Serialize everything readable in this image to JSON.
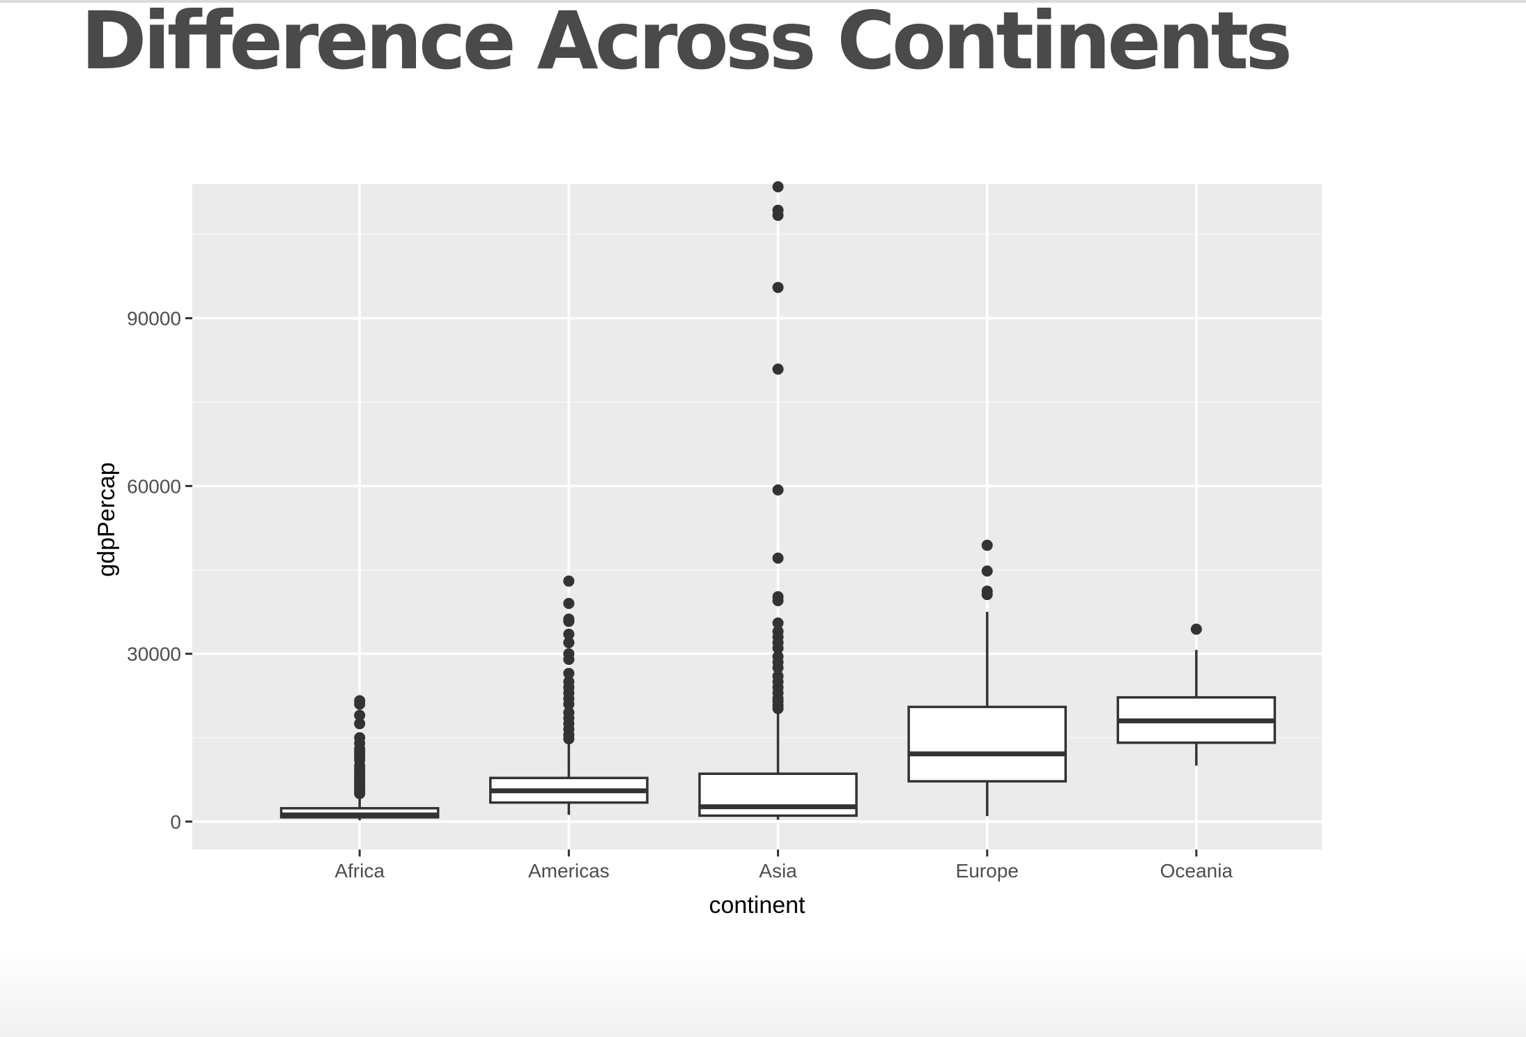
{
  "slide": {
    "title": "Difference Across Continents"
  },
  "chart_data": {
    "type": "boxplot",
    "title": "",
    "xlabel": "continent",
    "ylabel": "gdpPercap",
    "categories": [
      "Africa",
      "Americas",
      "Asia",
      "Europe",
      "Oceania"
    ],
    "ylim": [
      -5000,
      114000
    ],
    "yticks": [
      0,
      30000,
      60000,
      90000
    ],
    "y_tick_labels": [
      "0",
      "30000",
      "60000",
      "90000"
    ],
    "grid": true,
    "legend": "none",
    "boxes": [
      {
        "category": "Africa",
        "whisker_low": 241,
        "q1": 760,
        "median": 1190,
        "q3": 2380,
        "whisker_high": 4800,
        "outliers": [
          5000,
          5400,
          5800,
          6200,
          6600,
          7000,
          7400,
          7800,
          8200,
          8600,
          9000,
          9500,
          10000,
          11000,
          11500,
          12000,
          12500,
          13000,
          14000,
          15000,
          17500,
          19000,
          21000,
          21600
        ]
      },
      {
        "category": "Americas",
        "whisker_low": 1200,
        "q1": 3400,
        "median": 5500,
        "q3": 7800,
        "whisker_high": 14300,
        "outliers": [
          14800,
          15500,
          16500,
          17500,
          18500,
          19500,
          21000,
          22000,
          23000,
          24000,
          25000,
          26500,
          29000,
          30000,
          32000,
          33500,
          35800,
          36200,
          39000,
          43000
        ]
      },
      {
        "category": "Asia",
        "whisker_low": 330,
        "q1": 1060,
        "median": 2650,
        "q3": 8550,
        "whisker_high": 19800,
        "outliers": [
          20200,
          20800,
          21500,
          22000,
          23000,
          24000,
          25000,
          26000,
          27500,
          28500,
          29500,
          31000,
          32000,
          33000,
          34000,
          35500,
          39500,
          40200,
          47100,
          59300,
          80900,
          95500,
          108400,
          109300,
          113500
        ]
      },
      {
        "category": "Europe",
        "whisker_low": 970,
        "q1": 7200,
        "median": 12100,
        "q3": 20500,
        "whisker_high": 37500,
        "outliers": [
          40600,
          41200,
          44800,
          49400
        ]
      },
      {
        "category": "Oceania",
        "whisker_low": 10000,
        "q1": 14100,
        "median": 18000,
        "q3": 22200,
        "whisker_high": 30700,
        "outliers": [
          34400
        ]
      }
    ]
  },
  "colors": {
    "panel_background": "#ebebeb",
    "grid_major": "#ffffff",
    "grid_minor": "#f4f4f4",
    "box_outline": "#333333",
    "box_fill": "#ffffff",
    "outlier_point": "#333333",
    "title_text": "#4a4a4a"
  }
}
